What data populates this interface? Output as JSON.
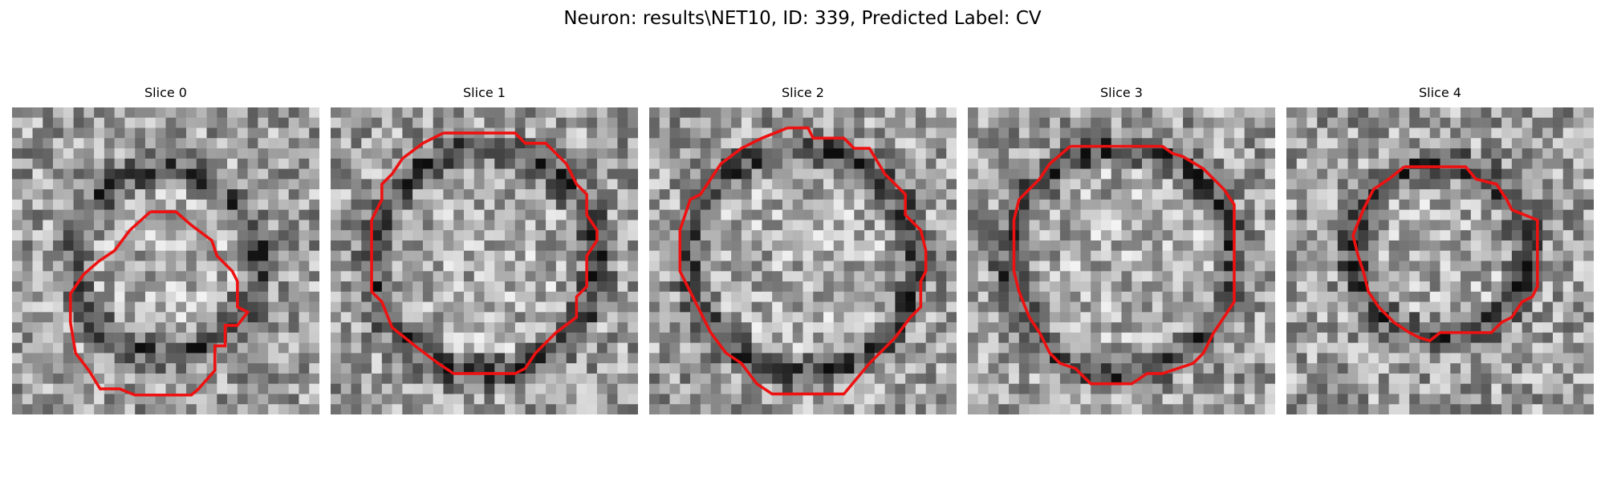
{
  "figure": {
    "title": "Neuron: results\\NET10, ID: 339, Predicted Label: CV",
    "contour_color": "#ee1111"
  },
  "panels": [
    {
      "title": "Slice 0",
      "seed": 11,
      "ring": 0.42,
      "shape": "blob"
    },
    {
      "title": "Slice 1",
      "seed": 23,
      "ring": 0.3,
      "shape": "round"
    },
    {
      "title": "Slice 2",
      "seed": 37,
      "ring": 0.32,
      "shape": "round"
    },
    {
      "title": "Slice 3",
      "seed": 51,
      "ring": 0.28,
      "shape": "round"
    },
    {
      "title": "Slice 4",
      "seed": 67,
      "ring": 0.2,
      "shape": "small"
    }
  ]
}
